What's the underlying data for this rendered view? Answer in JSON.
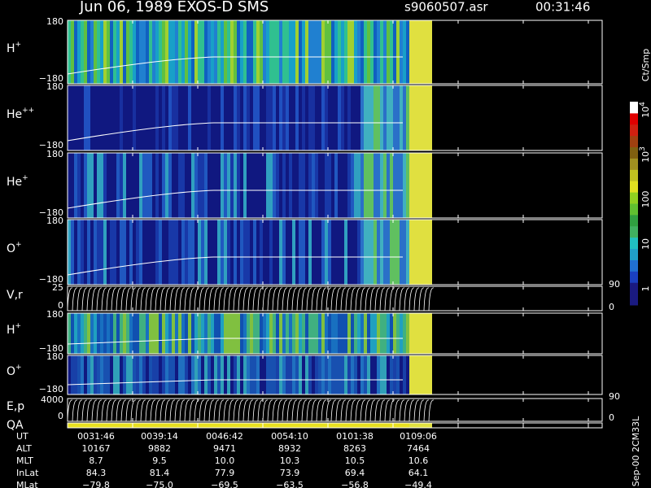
{
  "header": {
    "title": "Jun 06, 1989   EXOS-D SMS",
    "file": "s9060507.asr",
    "time": "00:31:46"
  },
  "panels": [
    {
      "label": "H",
      "sup": "+",
      "top": "180",
      "bottom": "−180"
    },
    {
      "label": "He",
      "sup": "++",
      "top": "180",
      "bottom": "−180"
    },
    {
      "label": "He",
      "sup": "+",
      "top": "180",
      "bottom": "−180"
    },
    {
      "label": "O",
      "sup": "+",
      "top": "180",
      "bottom": "−180"
    },
    {
      "label": "V,r",
      "sup": "",
      "top": "25",
      "bottom": "0",
      "right_top": "90",
      "right_bottom": "0"
    },
    {
      "label": "H",
      "sup": "+",
      "top": "180",
      "bottom": "−180"
    },
    {
      "label": "O",
      "sup": "+",
      "top": "180",
      "bottom": "−180"
    },
    {
      "label": "E,p",
      "sup": "",
      "top": "4000",
      "bottom": "0",
      "right_top": "90",
      "right_bottom": "0"
    },
    {
      "label": "QA",
      "sup": ""
    }
  ],
  "colorbar": {
    "unit": "Ct/Smp",
    "labels": [
      {
        "base": "10",
        "exp": "4"
      },
      {
        "base": "10",
        "exp": "3"
      },
      {
        "base": "100",
        "exp": ""
      },
      {
        "base": "10",
        "exp": ""
      },
      {
        "base": "1",
        "exp": ""
      }
    ]
  },
  "footer_note": "Sep-00  2CM33L",
  "table": {
    "rows": [
      [
        "UT",
        "0031:46",
        "0039:14",
        "0046:42",
        "0054:10",
        "0101:38",
        "0109:06"
      ],
      [
        "ALT",
        "10167",
        "9882",
        "9471",
        "8932",
        "8263",
        "7464"
      ],
      [
        "MLT",
        "8.7",
        "9.5",
        "10.0",
        "10.3",
        "10.5",
        "10.6"
      ],
      [
        "InLat",
        "84.3",
        "81.4",
        "77.9",
        "73.9",
        "69.4",
        "64.1"
      ],
      [
        "MLat",
        "−79.8",
        "−75.0",
        "−69.5",
        "−63.5",
        "−56.8",
        "−49.4"
      ]
    ]
  }
}
